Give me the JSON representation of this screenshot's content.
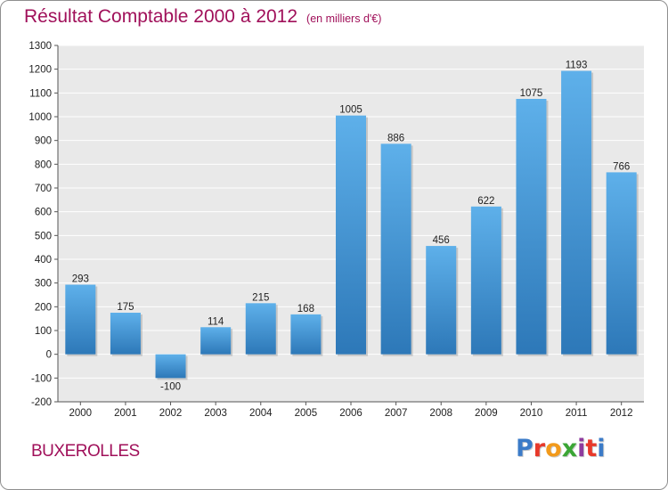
{
  "header": {
    "title": "Résultat Comptable 2000 à 2012",
    "unit": "(en milliers d'€)"
  },
  "footer": {
    "commune": "BUXEROLLES",
    "logo_letters": [
      "P",
      "r",
      "o",
      "x",
      "i",
      "t",
      "i"
    ]
  },
  "colors": {
    "title": "#a0105a",
    "bar_light": "#5eb0ea",
    "bar_dark": "#2d78b8",
    "plot_background": "#e9e9e9",
    "grid": "#ffffff",
    "logo": [
      "#3b7bc8",
      "#e8392a",
      "#f29a1b",
      "#3ba635",
      "#8e3b9e",
      "#e8392a",
      "#3b7bc8"
    ]
  },
  "chart_data": {
    "type": "bar",
    "title": "Résultat Comptable 2000 à 2012",
    "subtitle": "(en milliers d'€)",
    "xlabel": "",
    "ylabel": "",
    "categories": [
      "2000",
      "2001",
      "2002",
      "2003",
      "2004",
      "2005",
      "2006",
      "2007",
      "2008",
      "2009",
      "2010",
      "2011",
      "2012"
    ],
    "values": [
      293,
      175,
      -100,
      114,
      215,
      168,
      1005,
      886,
      456,
      622,
      1075,
      1193,
      766
    ],
    "ylim": [
      -200,
      1300
    ],
    "yticks": [
      -200,
      -100,
      0,
      100,
      200,
      300,
      400,
      500,
      600,
      700,
      800,
      900,
      1000,
      1100,
      1200,
      1300
    ],
    "grid": true,
    "legend": "none"
  }
}
